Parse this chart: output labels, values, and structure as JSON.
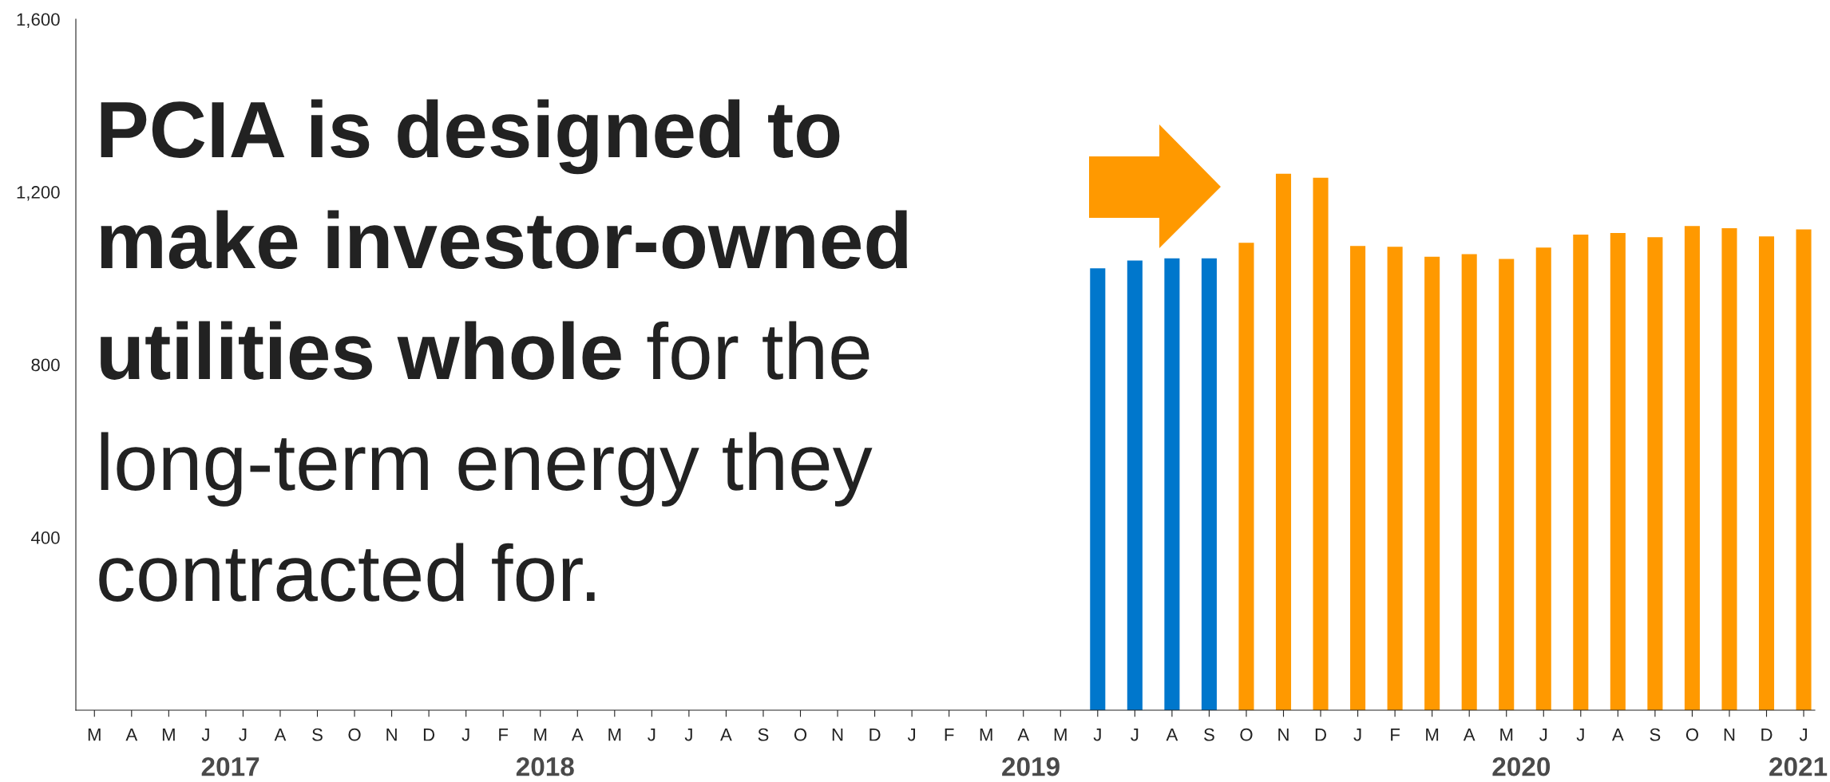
{
  "chart_data": {
    "type": "bar",
    "categories": [
      "M",
      "A",
      "M",
      "J",
      "J",
      "A",
      "S",
      "O",
      "N",
      "D",
      "J",
      "F",
      "M",
      "A",
      "M",
      "J",
      "J",
      "A",
      "S",
      "O",
      "N",
      "D",
      "J",
      "F",
      "M",
      "A",
      "M",
      "J",
      "J",
      "A",
      "S",
      "O",
      "N",
      "D",
      "J",
      "F",
      "M",
      "A",
      "M",
      "J",
      "J",
      "A",
      "S",
      "O",
      "N",
      "D",
      "J"
    ],
    "series": [
      {
        "color": "#0077cc",
        "values": [
          null,
          null,
          null,
          null,
          null,
          null,
          null,
          null,
          null,
          null,
          null,
          null,
          null,
          null,
          null,
          null,
          null,
          null,
          null,
          null,
          null,
          null,
          null,
          null,
          null,
          null,
          null,
          1023,
          1041,
          1046,
          1046,
          null,
          null,
          null,
          null,
          null,
          null,
          null,
          null,
          null,
          null,
          null,
          null,
          null,
          null,
          null,
          null
        ]
      },
      {
        "color": "#ff9900",
        "values": [
          null,
          null,
          null,
          null,
          null,
          null,
          null,
          null,
          null,
          null,
          null,
          null,
          null,
          null,
          null,
          null,
          null,
          null,
          null,
          null,
          null,
          null,
          null,
          null,
          null,
          null,
          null,
          null,
          null,
          null,
          null,
          1082,
          1242,
          1233,
          1075,
          1073,
          1050,
          1056,
          1045,
          1071,
          1101,
          1105,
          1095,
          1121,
          1116,
          1097,
          1113
        ]
      }
    ],
    "ylim": [
      0,
      1600
    ],
    "yticks": [
      {
        "value": 400,
        "label": "400"
      },
      {
        "value": 800,
        "label": "800"
      },
      {
        "value": 1200,
        "label": "1,200"
      },
      {
        "value": 1600,
        "label": "1,600"
      }
    ],
    "annotations": [
      "2017",
      "2018",
      "2019",
      "2020",
      "2021",
      "PCIA is designed to\nmake investor-owned\nutilities whole",
      "for the\nlong-term energy they\ncontracted for."
    ]
  }
}
